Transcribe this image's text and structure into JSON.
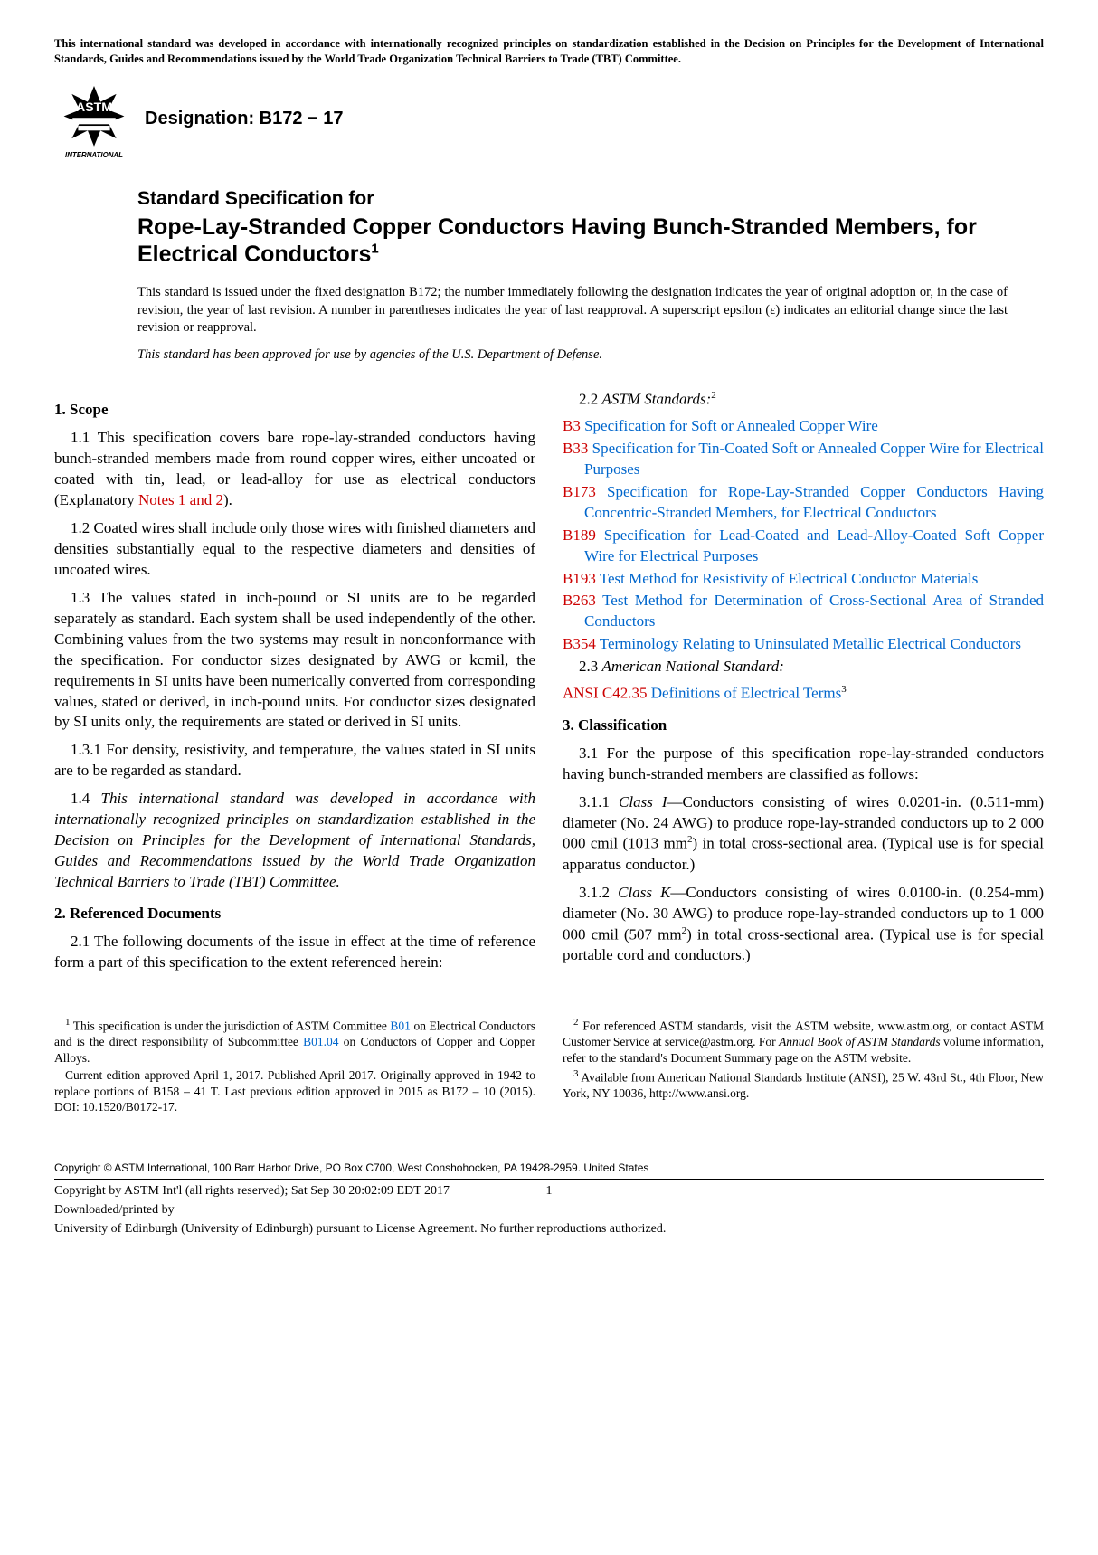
{
  "header_notice": "This international standard was developed in accordance with internationally recognized principles on standardization established in the Decision on Principles for the Development of International Standards, Guides and Recommendations issued by the World Trade Organization Technical Barriers to Trade (TBT) Committee.",
  "logo_text_top": "INTERNATIONAL",
  "designation": "Designation: B172 − 17",
  "title_pre": "Standard Specification for",
  "title_main": "Rope-Lay-Stranded Copper Conductors Having Bunch-Stranded Members, for Electrical Conductors",
  "title_sup": "1",
  "issuance": "This standard is issued under the fixed designation B172; the number immediately following the designation indicates the year of original adoption or, in the case of revision, the year of last revision. A number in parentheses indicates the year of last reapproval. A superscript epsilon (ε) indicates an editorial change since the last revision or reapproval.",
  "dod": "This standard has been approved for use by agencies of the U.S. Department of Defense.",
  "s1_head": "1.  Scope",
  "s1_1a": "1.1 This specification covers bare rope-lay-stranded conductors having bunch-stranded members made from round copper wires, either uncoated or coated with tin, lead, or lead-alloy for use as electrical conductors (Explanatory ",
  "s1_1b": "Notes 1 and 2",
  "s1_1c": ").",
  "s1_2": "1.2 Coated wires shall include only those wires with finished diameters and densities substantially equal to the respective diameters and densities of uncoated wires.",
  "s1_3": "1.3 The values stated in inch-pound or SI units are to be regarded separately as standard. Each system shall be used independently of the other. Combining values from the two systems may result in nonconformance with the specification. For conductor sizes designated by AWG or kcmil, the requirements in SI units have been numerically converted from corresponding values, stated or derived, in inch-pound units. For conductor sizes designated by SI units only, the requirements are stated or derived in SI units.",
  "s1_3_1": "1.3.1 For density, resistivity, and temperature, the values stated in SI units are to be regarded as standard.",
  "s1_4_pre": "1.4 ",
  "s1_4": "This international standard was developed in accordance with internationally recognized principles on standardization established in the Decision on Principles for the Development of International Standards, Guides and Recommendations issued by the World Trade Organization Technical Barriers to Trade (TBT) Committee.",
  "s2_head": "2.  Referenced Documents",
  "s2_1": "2.1 The following documents of the issue in effect at the time of reference form a part of this specification to the extent referenced herein:",
  "s2_2_pre": "2.2 ",
  "s2_2_label": "ASTM Standards:",
  "s2_2_sup": "2",
  "refs": [
    {
      "code": "B3",
      "text": " Specification for Soft or Annealed Copper Wire"
    },
    {
      "code": "B33",
      "text": " Specification for Tin-Coated Soft or Annealed Copper Wire for Electrical Purposes"
    },
    {
      "code": "B173",
      "text": " Specification for Rope-Lay-Stranded Copper Conductors Having Concentric-Stranded Members, for Electrical Conductors"
    },
    {
      "code": "B189",
      "text": " Specification for Lead-Coated and Lead-Alloy-Coated Soft Copper Wire for Electrical Purposes"
    },
    {
      "code": "B193",
      "text": " Test Method for Resistivity of Electrical Conductor Materials"
    },
    {
      "code": "B263",
      "text": " Test Method for Determination of Cross-Sectional Area of Stranded Conductors"
    },
    {
      "code": "B354",
      "text": " Terminology Relating to Uninsulated Metallic Electrical Conductors"
    }
  ],
  "s2_3_pre": "2.3 ",
  "s2_3_label": "American National Standard:",
  "ansi_code": "ANSI C42.35",
  "ansi_text": " Definitions of Electrical Terms",
  "ansi_sup": "3",
  "s3_head": "3.  Classification",
  "s3_1": "3.1 For the purpose of this specification rope-lay-stranded conductors having bunch-stranded members are classified as follows:",
  "s3_1_1_pre": "3.1.1 ",
  "s3_1_1_label": "Class I",
  "s3_1_1a": "—Conductors consisting of wires 0.0201-in. (0.511-mm) diameter (No. 24 AWG) to produce rope-lay-stranded conductors up to 2 000 000 cmil (1013 mm",
  "s3_1_1sup": "2",
  "s3_1_1b": ") in total cross-sectional area. (Typical use is for special apparatus conductor.)",
  "s3_1_2_pre": "3.1.2 ",
  "s3_1_2_label": "Class K",
  "s3_1_2a": "—Conductors consisting of wires 0.0100-in. (0.254-mm) diameter (No. 30 AWG) to produce rope-lay-stranded conductors up to 1 000 000 cmil (507 mm",
  "s3_1_2sup": "2",
  "s3_1_2b": ") in total cross-sectional area. (Typical use is for special portable cord and conductors.)",
  "fn1_sup": "1",
  "fn1a": " This specification is under the jurisdiction of ASTM Committee ",
  "fn1_link1": "B01",
  "fn1b": " on Electrical Conductors and is the direct responsibility of Subcommittee ",
  "fn1_link2": "B01.04",
  "fn1c": " on Conductors of Copper and Copper Alloys.",
  "fn1d": "Current edition approved April 1, 2017. Published April 2017. Originally approved in 1942 to replace portions of B158 – 41 T. Last previous edition approved in 2015 as B172 – 10 (2015). DOI: 10.1520/B0172-17.",
  "fn2_sup": "2",
  "fn2a": " For referenced ASTM standards, visit the ASTM website, www.astm.org, or contact ASTM Customer Service at service@astm.org. For ",
  "fn2_ital": "Annual Book of ASTM Standards",
  "fn2b": " volume information, refer to the standard's Document Summary page on the ASTM website.",
  "fn3_sup": "3",
  "fn3": " Available from American National Standards Institute (ANSI), 25 W. 43rd St., 4th Floor, New York, NY 10036, http://www.ansi.org.",
  "copyright": "Copyright © ASTM International, 100 Barr Harbor Drive, PO Box C700, West Conshohocken, PA 19428-2959. United States",
  "footer1": "Copyright by ASTM Int'l (all rights reserved); Sat Sep 30 20:02:09 EDT 2017",
  "footer2": "Downloaded/printed by",
  "footer3": "University of Edinburgh (University of Edinburgh) pursuant to License Agreement. No further reproductions authorized.",
  "page_num": "1"
}
